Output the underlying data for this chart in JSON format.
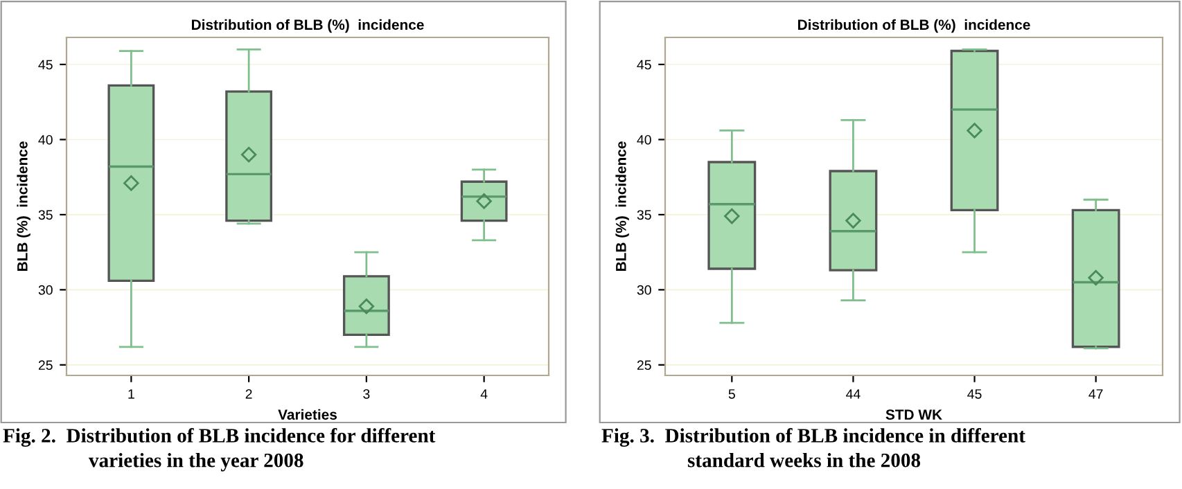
{
  "chart_data": [
    {
      "type": "box",
      "title": "Distribution of BLB (%)  incidence",
      "xlabel": "Varieties",
      "ylabel": "BLB (%)  incidence",
      "categories": [
        "1",
        "2",
        "3",
        "4"
      ],
      "ylim": [
        24.3,
        46.8
      ],
      "yticks": [
        25,
        30,
        35,
        40,
        45
      ],
      "grid": "y",
      "color": "#a8dcb0",
      "boxes": [
        {
          "low": 26.2,
          "q1": 30.6,
          "median": 38.2,
          "q3": 43.6,
          "high": 45.9,
          "mean": 37.1
        },
        {
          "low": 34.4,
          "q1": 34.6,
          "median": 37.7,
          "q3": 43.2,
          "high": 46.0,
          "mean": 39.0
        },
        {
          "low": 26.2,
          "q1": 27.0,
          "median": 28.6,
          "q3": 30.9,
          "high": 32.5,
          "mean": 28.9
        },
        {
          "low": 33.3,
          "q1": 34.6,
          "median": 36.2,
          "q3": 37.2,
          "high": 38.0,
          "mean": 35.9
        }
      ],
      "annotations": [
        "Fig. 2.  Distribution of BLB incidence for different\nvarieties in the year 2008"
      ]
    },
    {
      "type": "box",
      "title": "Distribution of BLB (%)  incidence",
      "xlabel": "STD WK",
      "ylabel": "BLB (%)  incidence",
      "categories": [
        "5",
        "44",
        "45",
        "47"
      ],
      "ylim": [
        24.3,
        46.8
      ],
      "yticks": [
        25,
        30,
        35,
        40,
        45
      ],
      "grid": "y",
      "color": "#a8dcb0",
      "boxes": [
        {
          "low": 27.8,
          "q1": 31.4,
          "median": 35.7,
          "q3": 38.5,
          "high": 40.6,
          "mean": 34.9
        },
        {
          "low": 29.3,
          "q1": 31.3,
          "median": 33.9,
          "q3": 37.9,
          "high": 41.3,
          "mean": 34.6
        },
        {
          "low": 32.5,
          "q1": 35.3,
          "median": 42.0,
          "q3": 45.9,
          "high": 46.0,
          "mean": 40.6
        },
        {
          "low": 26.1,
          "q1": 26.2,
          "median": 30.5,
          "q3": 35.3,
          "high": 36.0,
          "mean": 30.8
        }
      ],
      "annotations": [
        "Fig. 3.  Distribution of BLB incidence in different\nstandard weeks in the 2008"
      ]
    }
  ]
}
